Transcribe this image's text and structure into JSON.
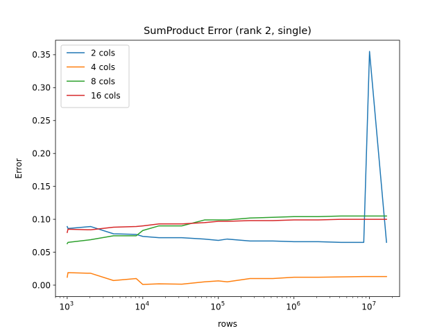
{
  "chart_data": {
    "type": "line",
    "title": "SumProduct Error (rank 2, single)",
    "xlabel": "rows",
    "ylabel": "Error",
    "x_scale": "log",
    "xlim": [
      700,
      25000000
    ],
    "ylim": [
      -0.0175,
      0.372
    ],
    "x_ticks": [
      {
        "value": 1000,
        "base": "10",
        "exp": "3"
      },
      {
        "value": 10000,
        "base": "10",
        "exp": "4"
      },
      {
        "value": 100000,
        "base": "10",
        "exp": "5"
      },
      {
        "value": 1000000,
        "base": "10",
        "exp": "6"
      },
      {
        "value": 10000000,
        "base": "10",
        "exp": "7"
      }
    ],
    "y_ticks": [
      {
        "value": 0.0,
        "label": "0.00"
      },
      {
        "value": 0.05,
        "label": "0.05"
      },
      {
        "value": 0.1,
        "label": "0.10"
      },
      {
        "value": 0.15,
        "label": "0.15"
      },
      {
        "value": 0.2,
        "label": "0.20"
      },
      {
        "value": 0.25,
        "label": "0.25"
      },
      {
        "value": 0.3,
        "label": "0.30"
      },
      {
        "value": 0.35,
        "label": "0.35"
      }
    ],
    "grid": false,
    "legend": "top-left",
    "series": [
      {
        "name": "2 cols",
        "color": "#1f77b4",
        "x": [
          1000,
          1024,
          2048,
          4096,
          8192,
          10000,
          16384,
          32768,
          65536,
          100000,
          131072,
          262144,
          524288,
          1000000,
          2097152,
          4194304,
          8388608,
          10000000,
          16777216
        ],
        "y": [
          0.089,
          0.086,
          0.089,
          0.078,
          0.077,
          0.074,
          0.072,
          0.072,
          0.07,
          0.068,
          0.07,
          0.067,
          0.067,
          0.066,
          0.066,
          0.065,
          0.065,
          0.355,
          0.065
        ]
      },
      {
        "name": "4 cols",
        "color": "#ff7f0e",
        "x": [
          1000,
          1024,
          2048,
          4096,
          8192,
          10000,
          16384,
          32768,
          65536,
          100000,
          131072,
          262144,
          524288,
          1000000,
          2097152,
          4194304,
          8388608,
          10000000,
          16777216
        ],
        "y": [
          0.012,
          0.019,
          0.018,
          0.007,
          0.01,
          0.001,
          0.002,
          0.0015,
          0.005,
          0.0065,
          0.005,
          0.01,
          0.01,
          0.012,
          0.012,
          0.0125,
          0.013,
          0.013,
          0.013
        ]
      },
      {
        "name": "8 cols",
        "color": "#2ca02c",
        "x": [
          1000,
          1024,
          2048,
          4096,
          8192,
          10000,
          16384,
          32768,
          65536,
          100000,
          131072,
          262144,
          524288,
          1000000,
          2097152,
          4194304,
          8388608,
          10000000,
          16777216
        ],
        "y": [
          0.063,
          0.065,
          0.069,
          0.075,
          0.075,
          0.083,
          0.09,
          0.09,
          0.099,
          0.099,
          0.099,
          0.102,
          0.103,
          0.104,
          0.104,
          0.105,
          0.105,
          0.105,
          0.105
        ]
      },
      {
        "name": "16 cols",
        "color": "#d62728",
        "x": [
          1000,
          1024,
          2048,
          4096,
          8192,
          10000,
          16384,
          32768,
          65536,
          100000,
          131072,
          262144,
          524288,
          1000000,
          2097152,
          4194304,
          8388608,
          10000000,
          16777216
        ],
        "y": [
          0.08,
          0.085,
          0.084,
          0.088,
          0.089,
          0.09,
          0.093,
          0.093,
          0.095,
          0.097,
          0.097,
          0.098,
          0.098,
          0.099,
          0.099,
          0.1,
          0.1,
          0.1,
          0.1
        ]
      }
    ]
  }
}
